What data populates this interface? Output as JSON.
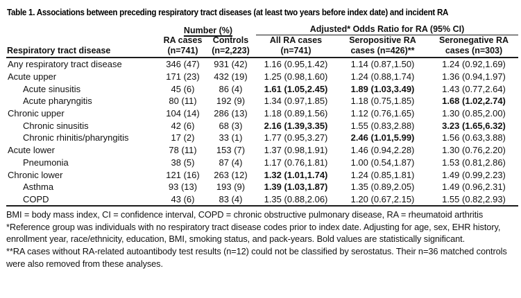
{
  "table": {
    "title": "Table 1. Associations between preceding respiratory tract diseases (at least two years before index date) and incident RA",
    "group_headers": {
      "number": "Number (%)",
      "adjusted": "Adjusted* Odds Ratio for RA (95% CI)"
    },
    "columns": [
      {
        "label": "Respiratory tract disease"
      },
      {
        "line1": "RA cases",
        "line2": "(n=741)"
      },
      {
        "line1": "Controls",
        "line2": "(n=2,223)"
      },
      {
        "line1": "All RA cases",
        "line2": "(n=741)"
      },
      {
        "line1": "Seropositive RA",
        "line2": "cases (n=426)**"
      },
      {
        "line1": "Seronegative RA",
        "line2": "cases (n=303)"
      }
    ],
    "rows": [
      {
        "label": "Any respiratory tract disease",
        "indent": false,
        "cells": [
          "346 (47)",
          "931 (42)",
          "1.16 (0.95,1.42)",
          "1.14 (0.87,1.50)",
          "1.24 (0.92,1.69)"
        ],
        "bold": [
          false,
          false,
          false,
          false,
          false
        ]
      },
      {
        "label": "Acute upper",
        "indent": false,
        "cells": [
          "171 (23)",
          "432 (19)",
          "1.25 (0.98,1.60)",
          "1.24 (0.88,1.74)",
          "1.36 (0.94,1.97)"
        ],
        "bold": [
          false,
          false,
          false,
          false,
          false
        ]
      },
      {
        "label": "Acute sinusitis",
        "indent": true,
        "cells": [
          "45 (6)",
          "86 (4)",
          "1.61 (1.05,2.45)",
          "1.89 (1.03,3.49)",
          "1.43 (0.77,2.64)"
        ],
        "bold": [
          false,
          false,
          true,
          true,
          false
        ]
      },
      {
        "label": "Acute pharyngitis",
        "indent": true,
        "cells": [
          "80 (11)",
          "192 (9)",
          "1.34 (0.97,1.85)",
          "1.18 (0.75,1.85)",
          "1.68 (1.02,2.74)"
        ],
        "bold": [
          false,
          false,
          false,
          false,
          true
        ]
      },
      {
        "label": "Chronic upper",
        "indent": false,
        "cells": [
          "104 (14)",
          "286 (13)",
          "1.18 (0.89,1.56)",
          "1.12 (0.76,1.65)",
          "1.30 (0.85,2.00)"
        ],
        "bold": [
          false,
          false,
          false,
          false,
          false
        ]
      },
      {
        "label": "Chronic sinusitis",
        "indent": true,
        "cells": [
          "42 (6)",
          "68 (3)",
          "2.16 (1.39,3.35)",
          "1.55 (0.83,2.88)",
          "3.23 (1.65,6.32)"
        ],
        "bold": [
          false,
          false,
          true,
          false,
          true
        ]
      },
      {
        "label": "Chronic rhinitis/pharyngitis",
        "indent": true,
        "cells": [
          "17 (2)",
          "33 (1)",
          "1.77 (0.95,3.27)",
          "2.46 (1.01,5.99)",
          "1.56 (0.63,3.88)"
        ],
        "bold": [
          false,
          false,
          false,
          true,
          false
        ]
      },
      {
        "label": "Acute lower",
        "indent": false,
        "cells": [
          "78 (11)",
          "153 (7)",
          "1.37 (0.98,1.91)",
          "1.46 (0.94,2.28)",
          "1.30 (0.76,2.20)"
        ],
        "bold": [
          false,
          false,
          false,
          false,
          false
        ]
      },
      {
        "label": "Pneumonia",
        "indent": true,
        "cells": [
          "38 (5)",
          "87 (4)",
          "1.17 (0.76,1.81)",
          "1.00 (0.54,1.87)",
          "1.53 (0.81,2.86)"
        ],
        "bold": [
          false,
          false,
          false,
          false,
          false
        ]
      },
      {
        "label": "Chronic lower",
        "indent": false,
        "cells": [
          "121 (16)",
          "263 (12)",
          "1.32 (1.01,1.74)",
          "1.24 (0.85,1.81)",
          "1.49 (0.99,2.23)"
        ],
        "bold": [
          false,
          false,
          true,
          false,
          false
        ]
      },
      {
        "label": "Asthma",
        "indent": true,
        "cells": [
          "93 (13)",
          "193 (9)",
          "1.39 (1.03,1.87)",
          "1.35 (0.89,2.05)",
          "1.49 (0.96,2.31)"
        ],
        "bold": [
          false,
          false,
          true,
          false,
          false
        ]
      },
      {
        "label": "COPD",
        "indent": true,
        "cells": [
          "43 (6)",
          "83 (4)",
          "1.35 (0.88,2.06)",
          "1.20 (0.67,2.15)",
          "1.55 (0.82,2.93)"
        ],
        "bold": [
          false,
          false,
          false,
          false,
          false
        ]
      }
    ],
    "footnotes": [
      "BMI = body mass index, CI = confidence interval, COPD = chronic obstructive pulmonary disease, RA = rheumatoid arthritis",
      "*Reference group was individuals with no respiratory tract disease codes prior to index date. Adjusting for age, sex, EHR history, enrollment year, race/ethnicity, education, BMI, smoking status, and pack-years. Bold values are statistically significant.",
      "**RA cases without RA-related autoantibody test results (n=12) could not be classified by serostatus. Their n=36 matched controls were also removed from these analyses."
    ]
  }
}
